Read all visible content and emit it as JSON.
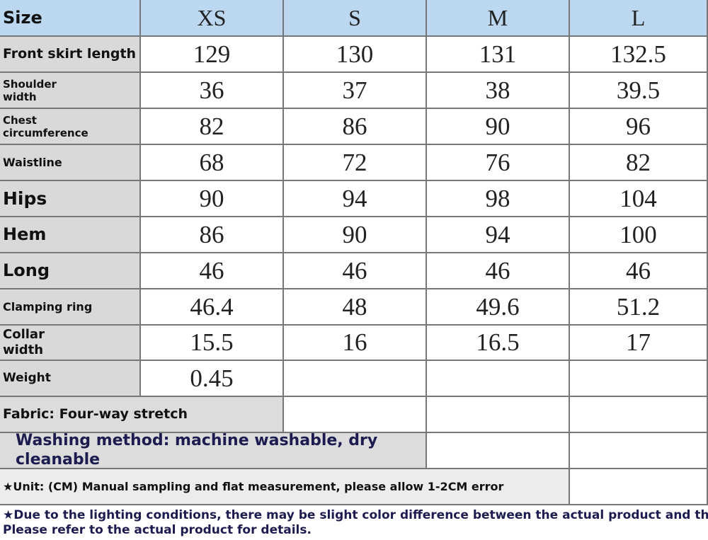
{
  "header": {
    "label": "Size",
    "sizes": [
      "XS",
      "S",
      "M",
      "L"
    ]
  },
  "rows": [
    {
      "label": "Front skirt length",
      "values": [
        "129",
        "130",
        "131",
        "132.5"
      ]
    },
    {
      "label": "Shoulder width",
      "values": [
        "36",
        "37",
        "38",
        "39.5"
      ]
    },
    {
      "label": "Chest circumference",
      "values": [
        "82",
        "86",
        "90",
        "96"
      ]
    },
    {
      "label": "Waistline",
      "values": [
        "68",
        "72",
        "76",
        "82"
      ]
    },
    {
      "label": "Hips",
      "values": [
        "90",
        "94",
        "98",
        "104"
      ]
    },
    {
      "label": "Hem",
      "values": [
        "86",
        "90",
        "94",
        "100"
      ]
    },
    {
      "label": "Long",
      "values": [
        "46",
        "46",
        "46",
        "46"
      ]
    },
    {
      "label": "Clamping ring",
      "values": [
        "46.4",
        "48",
        "49.6",
        "51.2"
      ]
    },
    {
      "label": "Collar width",
      "values": [
        "15.5",
        "16",
        "16.5",
        "17"
      ]
    },
    {
      "label": "Weight",
      "values": [
        "0.45"
      ]
    }
  ],
  "notes": {
    "fabric": "Fabric: Four-way stretch",
    "washing": "Washing method: machine washable, dry cleanable",
    "unit": "★Unit: (CM) Manual sampling and flat measurement, please allow 1-2CM error",
    "lighting": [
      "★Due to the lighting conditions, there may be slight color difference between the actual product and the picture.",
      "Please refer to the actual product for details."
    ]
  }
}
